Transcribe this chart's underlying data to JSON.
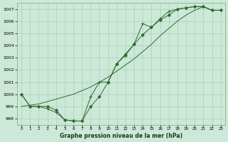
{
  "title": "Graphe pression niveau de la mer (hPa)",
  "background_color": "#cce8d8",
  "grid_color": "#aacfba",
  "line_color": "#2d6a2d",
  "x_labels": [
    "0",
    "1",
    "2",
    "3",
    "4",
    "5",
    "6",
    "7",
    "8",
    "9",
    "10",
    "11",
    "12",
    "13",
    "14",
    "15",
    "16",
    "17",
    "18",
    "19",
    "20",
    "21",
    "22",
    "23"
  ],
  "ylim": [
    997.5,
    1007.5
  ],
  "yticks": [
    998,
    999,
    1000,
    1001,
    1002,
    1003,
    1004,
    1005,
    1006,
    1007
  ],
  "line_plus": [
    1000.0,
    999.0,
    999.0,
    998.8,
    998.5,
    997.9,
    997.8,
    997.8,
    999.8,
    1001.0,
    1001.0,
    1002.5,
    1003.3,
    1004.1,
    1005.8,
    1005.5,
    1006.2,
    1006.8,
    1007.0,
    1007.1,
    1007.2,
    1007.2,
    1006.9,
    1006.9
  ],
  "line_diamond": [
    1000.0,
    999.0,
    999.0,
    999.0,
    998.7,
    997.9,
    997.8,
    997.8,
    999.0,
    999.8,
    1001.0,
    1002.5,
    1003.2,
    1004.1,
    1004.9,
    1005.5,
    1006.1,
    1006.5,
    1007.0,
    1007.1,
    1007.2,
    1007.2,
    1006.9,
    1006.9
  ],
  "line_plain": [
    999.0,
    999.1,
    999.2,
    999.4,
    999.6,
    999.8,
    1000.0,
    1000.3,
    1000.6,
    1001.0,
    1001.4,
    1001.9,
    1002.4,
    1002.9,
    1003.5,
    1004.1,
    1004.8,
    1005.4,
    1006.0,
    1006.5,
    1006.9,
    1007.2,
    1006.9,
    1006.9
  ]
}
